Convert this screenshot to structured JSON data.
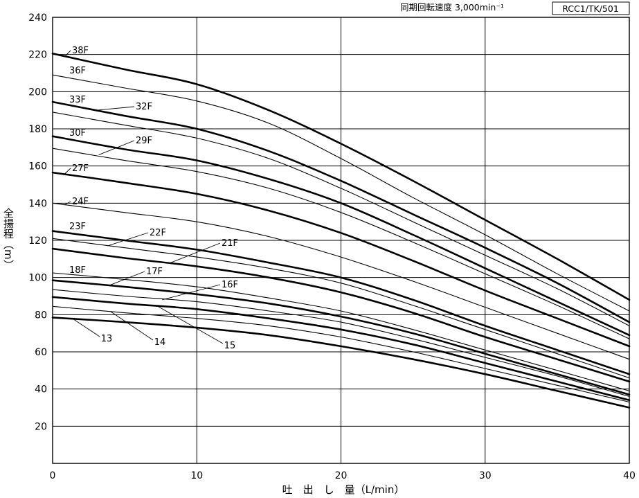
{
  "header": {
    "speed_label": "同期回転速度 3,000min⁻¹",
    "model_code": "RCC1/TK/501"
  },
  "chart_data": {
    "type": "line",
    "title": "",
    "xlabel": "吐　出　し　量（L/min）",
    "ylabel": "全揚程（m）",
    "xlim": [
      0,
      40
    ],
    "ylim": [
      0,
      240
    ],
    "x_ticks": [
      0,
      10,
      20,
      30,
      40
    ],
    "y_ticks": [
      20,
      40,
      60,
      80,
      100,
      120,
      140,
      160,
      180,
      200,
      220,
      240
    ],
    "grid": true,
    "series": [
      {
        "name": "38F",
        "bold": true,
        "x": [
          0,
          5,
          10,
          15,
          20,
          25,
          30,
          35,
          40
        ],
        "y": [
          220.5,
          212,
          204,
          190,
          172,
          152,
          131,
          110,
          88
        ]
      },
      {
        "name": "36F",
        "bold": false,
        "x": [
          0,
          5,
          10,
          15,
          20,
          25,
          30,
          35,
          40
        ],
        "y": [
          209,
          202,
          195,
          183,
          164,
          143,
          123,
          102,
          82
        ]
      },
      {
        "name": "33F",
        "bold": true,
        "x": [
          0,
          5,
          10,
          15,
          20,
          25,
          30,
          35,
          40
        ],
        "y": [
          194.5,
          187,
          180,
          168,
          152,
          134,
          116,
          97,
          76
        ]
      },
      {
        "name": "32F",
        "bold": false,
        "x": [
          0,
          5,
          10,
          15,
          20,
          25,
          30,
          35,
          40
        ],
        "y": [
          189,
          182,
          175,
          164,
          148,
          130,
          112,
          94,
          74
        ]
      },
      {
        "name": "30F",
        "bold": true,
        "x": [
          0,
          5,
          10,
          15,
          20,
          25,
          30,
          35,
          40
        ],
        "y": [
          176,
          169,
          163,
          153,
          140,
          123,
          105,
          87,
          69
        ]
      },
      {
        "name": "29F",
        "bold": false,
        "x": [
          0,
          5,
          10,
          15,
          20,
          25,
          30,
          35,
          40
        ],
        "y": [
          169.5,
          163,
          157,
          148,
          135,
          119,
          102,
          85,
          67
        ]
      },
      {
        "name": "27F",
        "bold": true,
        "x": [
          0,
          5,
          10,
          15,
          20,
          25,
          30,
          35,
          40
        ],
        "y": [
          156.5,
          151,
          145,
          136,
          124,
          109,
          93,
          78,
          63
        ]
      },
      {
        "name": "24F",
        "bold": false,
        "x": [
          0,
          5,
          10,
          15,
          20,
          25,
          30,
          35,
          40
        ],
        "y": [
          140,
          135,
          130,
          122,
          111,
          98,
          84,
          70,
          56
        ]
      },
      {
        "name": "23F",
        "bold": true,
        "x": [
          0,
          5,
          10,
          15,
          20,
          25,
          30,
          35,
          40
        ],
        "y": [
          125,
          120,
          115,
          108,
          100,
          88,
          74,
          61,
          48
        ]
      },
      {
        "name": "22F",
        "bold": false,
        "x": [
          0,
          5,
          10,
          15,
          20,
          25,
          30,
          35,
          40
        ],
        "y": [
          121,
          116,
          111,
          105,
          97,
          85,
          72,
          59,
          46
        ]
      },
      {
        "name": "21F",
        "bold": true,
        "x": [
          0,
          5,
          10,
          15,
          20,
          25,
          30,
          35,
          40
        ],
        "y": [
          115.5,
          110.5,
          106,
          100,
          92,
          81,
          68,
          56,
          44
        ]
      },
      {
        "name": "18F",
        "bold": false,
        "x": [
          0,
          5,
          10,
          15,
          20,
          25,
          30,
          35,
          40
        ],
        "y": [
          102.5,
          99,
          95,
          89,
          82,
          72,
          61,
          50,
          39
        ]
      },
      {
        "name": "17F",
        "bold": true,
        "x": [
          0,
          5,
          10,
          15,
          20,
          25,
          30,
          35,
          40
        ],
        "y": [
          98.5,
          95,
          91,
          86,
          79,
          70,
          59,
          48,
          37
        ]
      },
      {
        "name": "16F",
        "bold": false,
        "x": [
          0,
          5,
          10,
          15,
          20,
          25,
          30,
          35,
          40
        ],
        "y": [
          93.5,
          90,
          87,
          82,
          76,
          67,
          57,
          47,
          36
        ]
      },
      {
        "name": "15",
        "bold": true,
        "x": [
          0,
          5,
          10,
          15,
          20,
          25,
          30,
          35,
          40
        ],
        "y": [
          89.5,
          86,
          83,
          78,
          72,
          64,
          54,
          44,
          34
        ]
      },
      {
        "name": "14",
        "bold": false,
        "x": [
          0,
          5,
          10,
          15,
          20,
          25,
          30,
          35,
          40
        ],
        "y": [
          84.5,
          81,
          78,
          74,
          68,
          60,
          51,
          42,
          33
        ]
      },
      {
        "name": "13",
        "bold": true,
        "x": [
          0,
          5,
          10,
          15,
          20,
          25,
          30,
          35,
          40
        ],
        "y": [
          78.5,
          76,
          73,
          69,
          63,
          56,
          48,
          39,
          30
        ]
      }
    ]
  }
}
